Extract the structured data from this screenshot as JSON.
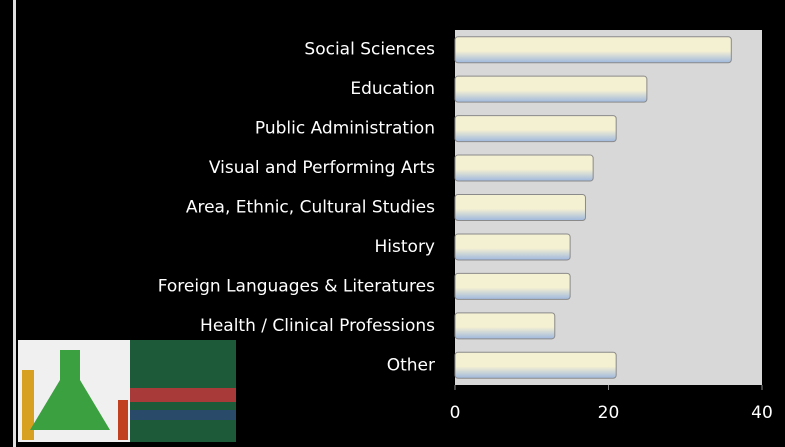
{
  "chart_data": {
    "type": "bar",
    "orientation": "horizontal",
    "categories": [
      "Social Sciences",
      "Education",
      "Public Administration",
      "Visual and Performing Arts",
      "Area, Ethnic, Cultural Studies",
      "History",
      "Foreign Languages & Literatures",
      "Health / Clinical Professions",
      "Other"
    ],
    "values": [
      36,
      25,
      21,
      18,
      17,
      15,
      15,
      13,
      21
    ],
    "color": "#f4f0d2",
    "color2": "#9fb8de",
    "plot_background": "#d8d8d8",
    "xlim": [
      0,
      40
    ],
    "xticks": [
      0,
      20,
      40
    ]
  }
}
